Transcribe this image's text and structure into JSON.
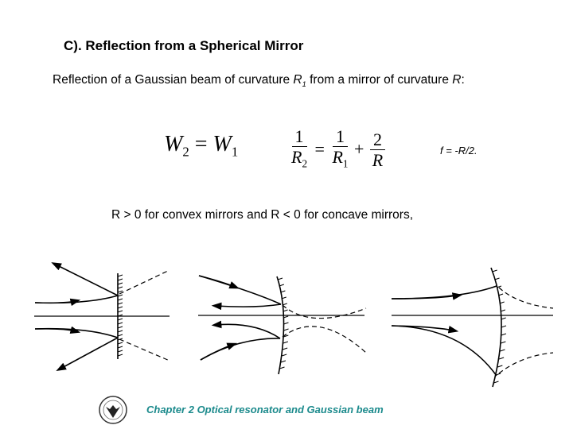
{
  "title": "C). Reflection from a Spherical Mirror",
  "intro": {
    "text": "Reflection of a Gaussian beam of curvature ",
    "r1": "R",
    "r1_sub": "1",
    "mid": " from a mirror of curvature ",
    "r": "R",
    "end": ":"
  },
  "eq1": {
    "lhs": "W",
    "lhs_sub": "2",
    "eq": " = ",
    "rhs": "W",
    "rhs_sub": "1"
  },
  "eq2": {
    "n1": "1",
    "d1": "R",
    "d1_sub": "2",
    "eq": "=",
    "n2": "1",
    "d2": "R",
    "d2_sub": "1",
    "plus": "+",
    "n3": "2",
    "d3": "R"
  },
  "focal_note": "f = -R/2.",
  "condition": "R > 0 for convex mirrors and R < 0 for concave mirrors,",
  "footer": "Chapter 2  Optical resonator and Gaussian beam",
  "colors": {
    "footer": "#1b8a8c"
  }
}
